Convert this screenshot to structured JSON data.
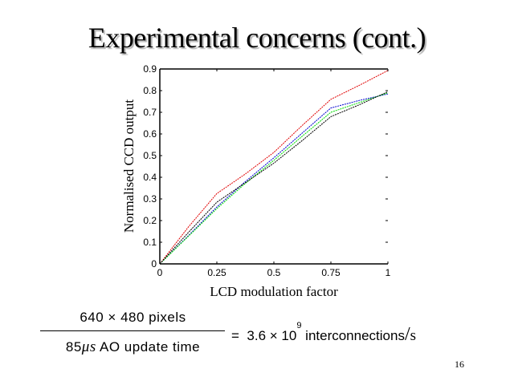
{
  "slide": {
    "title": "Experimental concerns (cont.)",
    "page_number": "16"
  },
  "equation": {
    "numerator": "640 × 480  pixels",
    "denominator_number": "85",
    "denominator_unit": "μs",
    "denominator_rest": " AO update time",
    "equals": "=",
    "result_mantissa": "3.6 × 10",
    "result_exponent": "9",
    "result_text": " interconnections",
    "result_slash": "/",
    "result_unit": "s"
  },
  "chart_data": {
    "type": "line",
    "title": "",
    "xlabel": "LCD modulation factor",
    "ylabel": "Normalised CCD output",
    "xlim": [
      0,
      1
    ],
    "ylim": [
      0,
      0.9
    ],
    "xticks": [
      0,
      0.25,
      0.5,
      0.75,
      1
    ],
    "xtick_labels": [
      "0",
      "0.25",
      "0.5",
      "0.75",
      "1"
    ],
    "yticks": [
      0,
      0.1,
      0.2,
      0.3,
      0.4,
      0.5,
      0.6,
      0.7,
      0.8,
      0.9
    ],
    "ytick_labels": [
      "0",
      "0.1",
      "0.2",
      "0.3",
      "0.4",
      "0.5",
      "0.6",
      "0.7",
      "0.8",
      "0.9"
    ],
    "grid": false,
    "legend": null,
    "x": [
      0,
      0.125,
      0.25,
      0.375,
      0.5,
      0.625,
      0.75,
      0.875,
      1
    ],
    "series": [
      {
        "name": "red",
        "color": "#e00000",
        "values": [
          0,
          0.17,
          0.325,
          0.415,
          0.515,
          0.64,
          0.76,
          0.825,
          0.893
        ]
      },
      {
        "name": "blue",
        "color": "#0000d0",
        "values": [
          0,
          0.13,
          0.263,
          0.38,
          0.49,
          0.605,
          0.72,
          0.755,
          0.785
        ]
      },
      {
        "name": "green",
        "color": "#00dd00",
        "values": [
          0,
          0.127,
          0.255,
          0.372,
          0.478,
          0.59,
          0.7,
          0.745,
          0.79
        ]
      },
      {
        "name": "black",
        "color": "#000000",
        "values": [
          0,
          0.145,
          0.285,
          0.375,
          0.465,
          0.57,
          0.68,
          0.735,
          0.795
        ]
      }
    ]
  }
}
